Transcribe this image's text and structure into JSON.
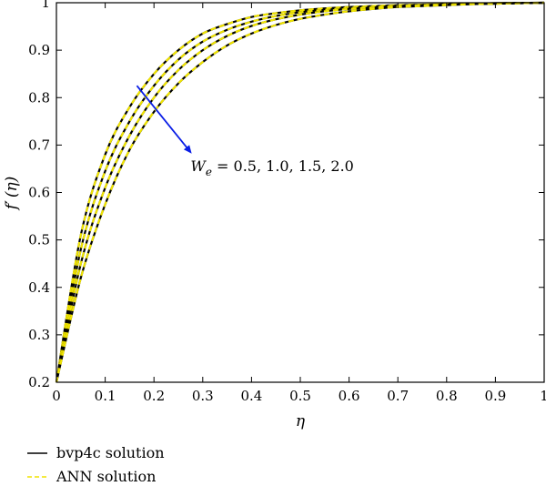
{
  "chart_data": {
    "type": "line",
    "xlabel": "η",
    "ylabel_main": "f′",
    "ylabel_arg": "(η)",
    "xlim": [
      0,
      1
    ],
    "ylim": [
      0.2,
      1.0
    ],
    "xticks": [
      0,
      0.1,
      0.2,
      0.3,
      0.4,
      0.5,
      0.6,
      0.7,
      0.8,
      0.9,
      1
    ],
    "xtick_labels": [
      "0",
      "0.1",
      "0.2",
      "0.3",
      "0.4",
      "0.5",
      "0.6",
      "0.7",
      "0.8",
      "0.9",
      "1"
    ],
    "yticks": [
      0.2,
      0.3,
      0.4,
      0.5,
      0.6,
      0.7,
      0.8,
      0.9,
      1.0
    ],
    "ytick_labels": [
      "0.2",
      "0.3",
      "0.4",
      "0.5",
      "0.6",
      "0.7",
      "0.8",
      "0.9",
      "1"
    ],
    "x": [
      0,
      0.05,
      0.1,
      0.15,
      0.2,
      0.25,
      0.3,
      0.35,
      0.4,
      0.45,
      0.5,
      0.55,
      0.6,
      0.65,
      0.7,
      0.75,
      0.8,
      0.85,
      0.9,
      0.95,
      1.0
    ],
    "series": [
      {
        "values": [
          0.2,
          0.51,
          0.68,
          0.78,
          0.85,
          0.9,
          0.935,
          0.955,
          0.97,
          0.978,
          0.984,
          0.988,
          0.991,
          0.993,
          0.995,
          0.996,
          0.997,
          0.998,
          0.999,
          0.9995,
          1.0
        ]
      },
      {
        "values": [
          0.2,
          0.48,
          0.645,
          0.75,
          0.825,
          0.88,
          0.918,
          0.943,
          0.96,
          0.972,
          0.98,
          0.985,
          0.989,
          0.992,
          0.994,
          0.995,
          0.997,
          0.998,
          0.999,
          0.9995,
          1.0
        ]
      },
      {
        "values": [
          0.2,
          0.45,
          0.61,
          0.72,
          0.8,
          0.858,
          0.9,
          0.93,
          0.951,
          0.965,
          0.975,
          0.982,
          0.987,
          0.99,
          0.993,
          0.995,
          0.996,
          0.997,
          0.998,
          0.999,
          1.0
        ]
      },
      {
        "values": [
          0.2,
          0.42,
          0.575,
          0.69,
          0.77,
          0.83,
          0.875,
          0.91,
          0.935,
          0.953,
          0.966,
          0.975,
          0.982,
          0.987,
          0.991,
          0.993,
          0.995,
          0.997,
          0.998,
          0.999,
          1.0
        ]
      }
    ],
    "annotation": {
      "symbol": "W",
      "subscript": "e",
      "rest": " = 0.5, 1.0, 1.5, 2.0",
      "arrow_from": [
        0.165,
        0.825
      ],
      "arrow_to": [
        0.275,
        0.685
      ],
      "text_at": [
        0.275,
        0.645
      ]
    },
    "legend": [
      {
        "label": "bvp4c solution",
        "style": "solid",
        "color": "#000000"
      },
      {
        "label": "ANN solution",
        "style": "dashed",
        "color": "#f0e400"
      }
    ],
    "colors": {
      "bvp4c": "#000000",
      "ann": "#f0e400",
      "arrow": "#0a1ee6"
    },
    "grid": false,
    "legend_placement": "bottom-left-below-axes"
  }
}
